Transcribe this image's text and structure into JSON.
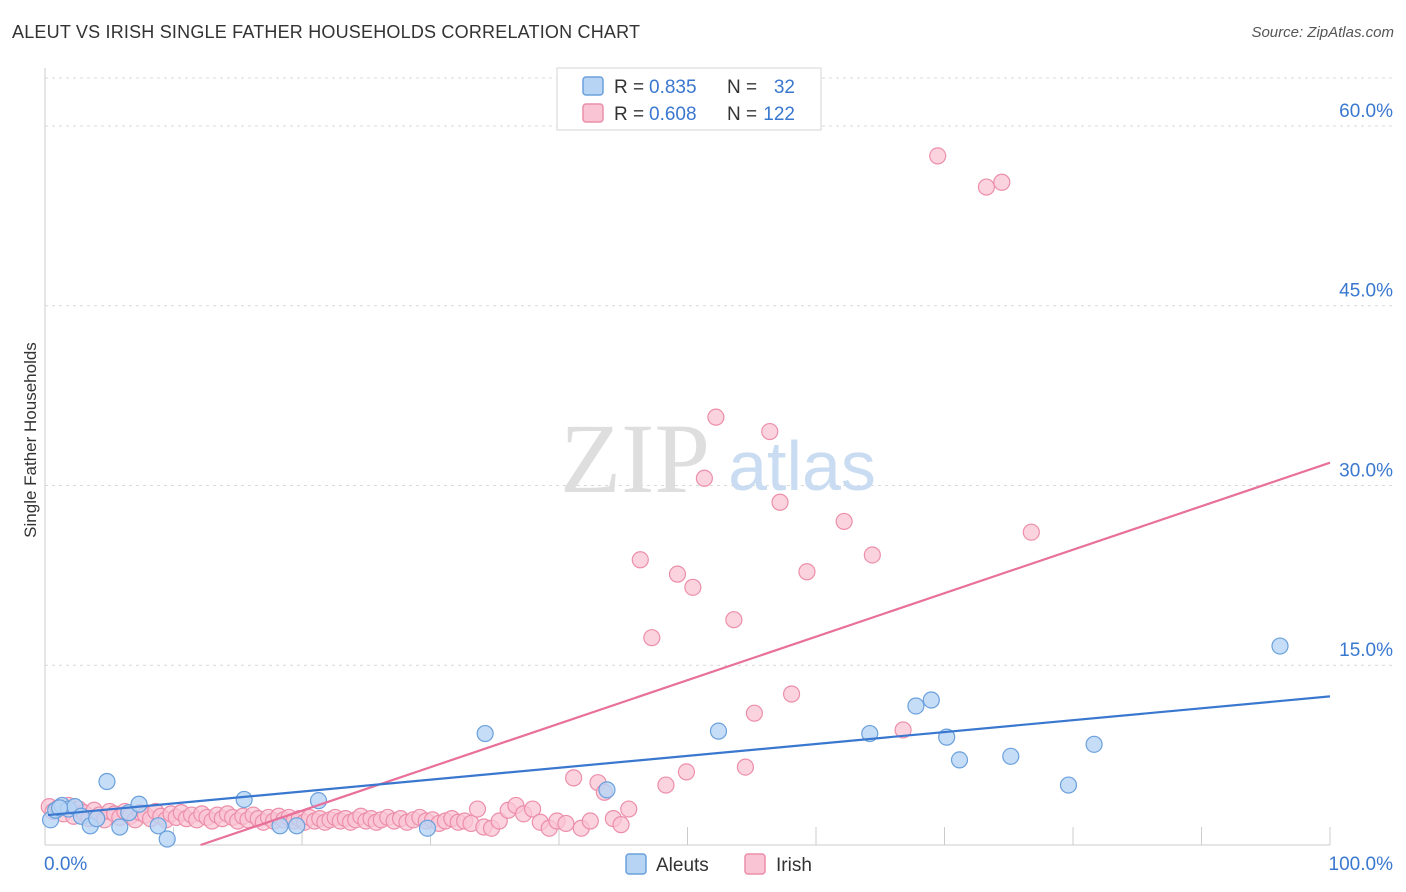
{
  "header": {
    "title": "ALEUT VS IRISH SINGLE FATHER HOUSEHOLDS CORRELATION CHART",
    "source": "Source: ZipAtlas.com"
  },
  "watermark": {
    "zip": "ZIP",
    "atlas": "atlas"
  },
  "legend_top": {
    "rows": [
      {
        "r_label": "R =",
        "r_value": "0.835",
        "n_label": "N =",
        "n_value": "32"
      },
      {
        "r_label": "R =",
        "r_value": "0.608",
        "n_label": "N =",
        "n_value": "122"
      }
    ]
  },
  "colors": {
    "aleut_fill": "#b8d4f5",
    "aleut_stroke": "#6aa0dc",
    "aleut_line": "#3a78d0",
    "irish_fill": "#f9c4d4",
    "irish_stroke": "#ec8eaa",
    "irish_line": "#e8709a",
    "tick_text": "#3a78d0",
    "grid": "#d9d9d9"
  },
  "chart_data": {
    "type": "scatter",
    "title": "ALEUT VS IRISH SINGLE FATHER HOUSEHOLDS CORRELATION CHART",
    "xlabel": "",
    "ylabel": "Single Father Households",
    "xlim": [
      0,
      100
    ],
    "ylim": [
      0,
      64
    ],
    "x_tick_labels": [
      "0.0%",
      "100.0%"
    ],
    "y_ticks": [
      15,
      30,
      45,
      60
    ],
    "y_tick_labels": [
      "15.0%",
      "30.0%",
      "45.0%",
      "60.0%"
    ],
    "legend": [
      "Aleuts",
      "Irish"
    ],
    "legend_position": "bottom-center",
    "grid": true,
    "series": [
      {
        "name": "Aleuts",
        "R": 0.835,
        "N": 32,
        "trend": {
          "x": [
            0,
            100
          ],
          "y": [
            2.5,
            12.4
          ]
        },
        "points": [
          [
            0.2,
            2.1
          ],
          [
            0.6,
            2.9
          ],
          [
            1.1,
            3.3
          ],
          [
            1.6,
            3.0
          ],
          [
            2.1,
            3.2
          ],
          [
            2.6,
            2.4
          ],
          [
            3.3,
            1.6
          ],
          [
            3.8,
            2.2
          ],
          [
            4.6,
            5.3
          ],
          [
            5.6,
            1.5
          ],
          [
            6.3,
            2.7
          ],
          [
            7.1,
            3.4
          ],
          [
            8.6,
            1.6
          ],
          [
            9.3,
            0.5
          ],
          [
            15.3,
            3.8
          ],
          [
            18.1,
            1.6
          ],
          [
            19.4,
            1.6
          ],
          [
            21.1,
            3.7
          ],
          [
            29.6,
            1.4
          ],
          [
            34.1,
            9.3
          ],
          [
            43.6,
            4.6
          ],
          [
            52.3,
            9.5
          ],
          [
            64.1,
            9.3
          ],
          [
            67.7,
            11.6
          ],
          [
            68.9,
            12.1
          ],
          [
            70.1,
            9.0
          ],
          [
            71.1,
            7.1
          ],
          [
            75.1,
            7.4
          ],
          [
            79.6,
            5.0
          ],
          [
            81.6,
            8.4
          ],
          [
            96.1,
            16.6
          ],
          [
            0.9,
            3.1
          ]
        ]
      },
      {
        "name": "Irish",
        "R": 0.608,
        "N": 122,
        "trend": {
          "x": [
            11.9,
            100
          ],
          "y": [
            0,
            31.9
          ]
        },
        "points": [
          [
            0.1,
            3.2
          ],
          [
            0.4,
            2.8
          ],
          [
            0.8,
            3.1
          ],
          [
            1.2,
            2.6
          ],
          [
            1.6,
            3.3
          ],
          [
            2.0,
            2.4
          ],
          [
            2.4,
            3.0
          ],
          [
            2.8,
            2.7
          ],
          [
            3.2,
            2.2
          ],
          [
            3.6,
            2.9
          ],
          [
            4.0,
            2.5
          ],
          [
            4.4,
            2.1
          ],
          [
            4.8,
            2.8
          ],
          [
            5.2,
            2.6
          ],
          [
            5.6,
            2.3
          ],
          [
            6.0,
            2.8
          ],
          [
            6.4,
            2.4
          ],
          [
            6.8,
            2.1
          ],
          [
            7.2,
            2.7
          ],
          [
            7.6,
            2.5
          ],
          [
            8.0,
            2.2
          ],
          [
            8.4,
            2.8
          ],
          [
            8.8,
            2.4
          ],
          [
            9.2,
            2.1
          ],
          [
            9.6,
            2.6
          ],
          [
            10.0,
            2.3
          ],
          [
            10.4,
            2.7
          ],
          [
            10.8,
            2.2
          ],
          [
            11.2,
            2.5
          ],
          [
            11.6,
            2.1
          ],
          [
            12.0,
            2.6
          ],
          [
            12.4,
            2.3
          ],
          [
            12.8,
            2.0
          ],
          [
            13.2,
            2.5
          ],
          [
            13.6,
            2.2
          ],
          [
            14.0,
            2.6
          ],
          [
            14.4,
            2.3
          ],
          [
            14.8,
            2.0
          ],
          [
            15.2,
            2.4
          ],
          [
            15.6,
            2.1
          ],
          [
            16.0,
            2.5
          ],
          [
            16.4,
            2.2
          ],
          [
            16.8,
            1.9
          ],
          [
            17.2,
            2.3
          ],
          [
            17.6,
            2.0
          ],
          [
            18.0,
            2.4
          ],
          [
            18.4,
            2.1
          ],
          [
            18.8,
            2.3
          ],
          [
            19.2,
            2.0
          ],
          [
            19.6,
            2.2
          ],
          [
            20.0,
            1.9
          ],
          [
            20.4,
            2.3
          ],
          [
            20.8,
            2.0
          ],
          [
            21.2,
            2.2
          ],
          [
            21.6,
            1.9
          ],
          [
            22.0,
            2.1
          ],
          [
            22.4,
            2.3
          ],
          [
            22.8,
            2.0
          ],
          [
            23.2,
            2.2
          ],
          [
            23.6,
            1.9
          ],
          [
            24.0,
            2.1
          ],
          [
            24.4,
            2.4
          ],
          [
            24.8,
            2.0
          ],
          [
            25.2,
            2.2
          ],
          [
            25.6,
            1.9
          ],
          [
            26.0,
            2.1
          ],
          [
            26.5,
            2.3
          ],
          [
            27.0,
            2.0
          ],
          [
            27.5,
            2.2
          ],
          [
            28.0,
            1.9
          ],
          [
            28.5,
            2.1
          ],
          [
            29.0,
            2.3
          ],
          [
            29.5,
            2.0
          ],
          [
            30.0,
            2.1
          ],
          [
            30.5,
            1.8
          ],
          [
            31.0,
            2.0
          ],
          [
            31.5,
            2.2
          ],
          [
            32.0,
            1.9
          ],
          [
            32.5,
            2.0
          ],
          [
            33.0,
            1.8
          ],
          [
            33.5,
            3.0
          ],
          [
            34.0,
            1.5
          ],
          [
            34.6,
            1.4
          ],
          [
            35.2,
            2.0
          ],
          [
            35.9,
            2.9
          ],
          [
            36.5,
            3.3
          ],
          [
            37.1,
            2.6
          ],
          [
            37.8,
            3.0
          ],
          [
            38.4,
            1.9
          ],
          [
            39.1,
            1.4
          ],
          [
            39.7,
            2.0
          ],
          [
            40.4,
            1.8
          ],
          [
            41.0,
            5.6
          ],
          [
            41.6,
            1.4
          ],
          [
            42.3,
            2.0
          ],
          [
            42.9,
            5.2
          ],
          [
            43.4,
            4.4
          ],
          [
            44.1,
            2.2
          ],
          [
            44.7,
            1.7
          ],
          [
            45.3,
            3.0
          ],
          [
            46.2,
            23.8
          ],
          [
            47.1,
            17.3
          ],
          [
            48.2,
            5.0
          ],
          [
            49.1,
            22.6
          ],
          [
            49.8,
            6.1
          ],
          [
            50.3,
            21.5
          ],
          [
            51.2,
            30.6
          ],
          [
            52.1,
            35.7
          ],
          [
            53.5,
            18.8
          ],
          [
            54.4,
            6.5
          ],
          [
            55.1,
            11.0
          ],
          [
            56.3,
            34.5
          ],
          [
            57.1,
            28.6
          ],
          [
            58.0,
            12.6
          ],
          [
            59.2,
            22.8
          ],
          [
            62.1,
            27.0
          ],
          [
            64.3,
            24.2
          ],
          [
            66.7,
            9.6
          ],
          [
            69.4,
            57.5
          ],
          [
            73.2,
            54.9
          ],
          [
            74.4,
            55.3
          ],
          [
            76.7,
            26.1
          ]
        ]
      }
    ]
  }
}
